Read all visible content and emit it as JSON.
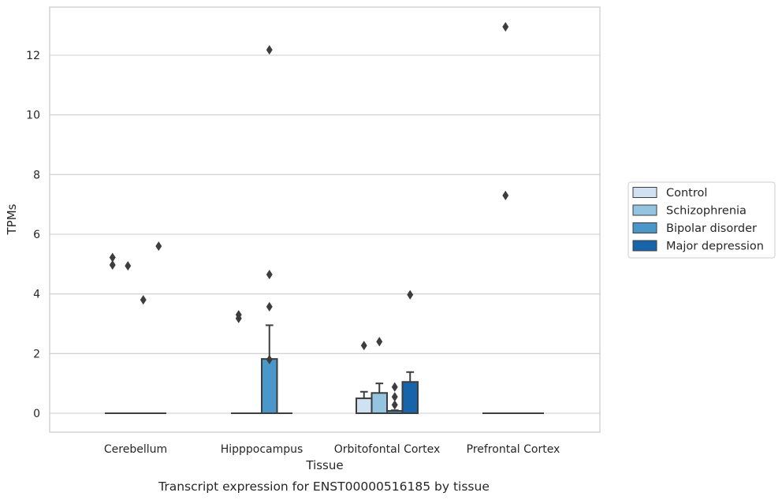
{
  "chart_data": {
    "type": "box",
    "title": "Transcript expression for ENST00000516185 by tissue",
    "xlabel": "Tissue",
    "ylabel": "TPMs",
    "categories": [
      "Cerebellum",
      "Hipppocampus",
      "Orbitofontal Cortex",
      "Prefrontal Cortex"
    ],
    "ylim": [
      -0.65,
      13.6
    ],
    "yticks": [
      0,
      2,
      4,
      6,
      8,
      10,
      12
    ],
    "grid": true,
    "legend_position": "right",
    "series": [
      {
        "name": "Control",
        "color": "#d0e1f2",
        "boxes": [
          {
            "q1": 0,
            "median": 0,
            "q3": 0,
            "whisker_low": 0,
            "whisker_high": 0,
            "outliers": [
              5.22,
              4.97
            ]
          },
          {
            "q1": 0,
            "median": 0,
            "q3": 0,
            "whisker_low": 0,
            "whisker_high": 0,
            "outliers": [
              3.3,
              3.18
            ]
          },
          {
            "q1": 0,
            "median": 0,
            "q3": 0.5,
            "whisker_low": 0,
            "whisker_high": 0.72,
            "outliers": [
              2.27
            ]
          },
          {
            "q1": 0,
            "median": 0,
            "q3": 0,
            "whisker_low": 0,
            "whisker_high": 0,
            "outliers": []
          }
        ]
      },
      {
        "name": "Schizophrenia",
        "color": "#94c4df",
        "boxes": [
          {
            "q1": 0,
            "median": 0,
            "q3": 0,
            "whisker_low": 0,
            "whisker_high": 0,
            "outliers": [
              4.94
            ]
          },
          {
            "q1": 0,
            "median": 0,
            "q3": 0,
            "whisker_low": 0,
            "whisker_high": 0,
            "outliers": []
          },
          {
            "q1": 0,
            "median": 0,
            "q3": 0.68,
            "whisker_low": 0,
            "whisker_high": 1.0,
            "outliers": [
              2.4
            ]
          },
          {
            "q1": 0,
            "median": 0,
            "q3": 0,
            "whisker_low": 0,
            "whisker_high": 0,
            "outliers": [
              12.95,
              7.3
            ]
          }
        ]
      },
      {
        "name": "Bipolar disorder",
        "color": "#4a98c9",
        "boxes": [
          {
            "q1": 0,
            "median": 0,
            "q3": 0,
            "whisker_low": 0,
            "whisker_high": 0,
            "outliers": [
              3.8
            ]
          },
          {
            "q1": 0,
            "median": 0,
            "q3": 1.82,
            "whisker_low": 0,
            "whisker_high": 2.95,
            "outliers": [
              12.18,
              4.65,
              3.57,
              1.8
            ]
          },
          {
            "q1": 0,
            "median": 0,
            "q3": 0.08,
            "whisker_low": 0,
            "whisker_high": 0.1,
            "outliers": [
              0.88,
              0.55,
              0.28
            ]
          },
          {
            "q1": 0,
            "median": 0,
            "q3": 0,
            "whisker_low": 0,
            "whisker_high": 0,
            "outliers": []
          }
        ]
      },
      {
        "name": "Major depression",
        "color": "#1764ab",
        "boxes": [
          {
            "q1": 0,
            "median": 0,
            "q3": 0,
            "whisker_low": 0,
            "whisker_high": 0,
            "outliers": [
              5.6
            ]
          },
          {
            "q1": 0,
            "median": 0,
            "q3": 0,
            "whisker_low": 0,
            "whisker_high": 0,
            "outliers": []
          },
          {
            "q1": 0,
            "median": 0,
            "q3": 1.05,
            "whisker_low": 0,
            "whisker_high": 1.38,
            "outliers": [
              3.97
            ]
          },
          {
            "q1": 0,
            "median": 0,
            "q3": 0,
            "whisker_low": 0,
            "whisker_high": 0,
            "outliers": []
          }
        ]
      }
    ]
  }
}
